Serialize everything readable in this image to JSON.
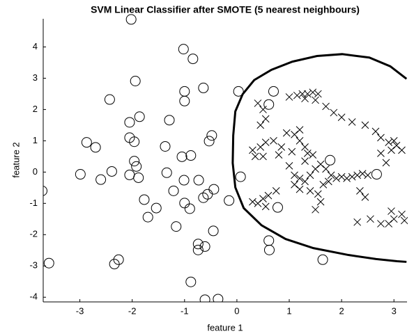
{
  "chart_data": {
    "type": "scatter",
    "title": "SVM Linear Classifier after SMOTE (5 nearest neighbours)",
    "x_label": "feature 1",
    "y_label": "feature 2",
    "xlim": [
      -3.7,
      3.25
    ],
    "ylim": [
      -4.15,
      4.9
    ],
    "xticks": [
      -3,
      -2,
      -1,
      0,
      1,
      2,
      3
    ],
    "yticks": [
      -4,
      -3,
      -2,
      -1,
      0,
      1,
      2,
      3,
      4
    ],
    "grid": false,
    "series": [
      {
        "marker": "o",
        "color": "#000000",
        "x": [
          -2.02,
          -1.02,
          -0.84,
          -1.94,
          -0.64,
          -1.0,
          -2.43,
          -1.0,
          0.03,
          0.7,
          0.61,
          -1.86,
          -2.05,
          -1.29,
          -0.48,
          -0.53,
          -2.87,
          -2.7,
          -2.05,
          -1.96,
          -1.37,
          -1.05,
          -0.88,
          -1.96,
          -1.92,
          -2.39,
          -2.99,
          -1.34,
          -2.05,
          -1.88,
          -2.6,
          -1.01,
          -0.73,
          0.07,
          -3.72,
          -1.21,
          -0.44,
          -0.56,
          -0.64,
          -1.77,
          -0.15,
          -1.0,
          -0.9,
          -1.54,
          0.78,
          -1.7,
          -1.16,
          -0.45,
          0.61,
          -0.74,
          -0.61,
          -0.74,
          0.62,
          -2.26,
          -2.34,
          -3.59,
          1.64,
          -0.88,
          -0.61,
          -0.36,
          1.78,
          2.67
        ],
        "y": [
          4.88,
          3.93,
          3.62,
          2.91,
          2.69,
          2.58,
          2.32,
          2.27,
          2.58,
          2.58,
          2.16,
          1.77,
          1.59,
          1.66,
          1.17,
          0.99,
          0.95,
          0.79,
          1.1,
          0.97,
          0.82,
          0.49,
          0.53,
          0.35,
          0.18,
          0.02,
          -0.07,
          -0.02,
          -0.09,
          -0.18,
          -0.24,
          -0.26,
          -0.26,
          -0.15,
          -0.6,
          -0.6,
          -0.55,
          -0.71,
          -0.82,
          -0.88,
          -0.91,
          -0.99,
          -1.17,
          -1.15,
          -1.13,
          -1.44,
          -1.74,
          -1.88,
          -2.19,
          -2.3,
          -2.38,
          -2.49,
          -2.49,
          -2.8,
          -2.94,
          -2.91,
          -2.8,
          -3.51,
          -4.08,
          -4.06,
          0.38,
          -0.07
        ]
      },
      {
        "marker": "x",
        "color": "#000000",
        "x": [
          1.0,
          1.15,
          1.25,
          1.35,
          1.45,
          1.55,
          1.3,
          1.5,
          1.7,
          1.85,
          2.0,
          2.2,
          2.45,
          2.65,
          2.75,
          2.9,
          3.05,
          3.15,
          2.95,
          2.75,
          2.85,
          3.0,
          0.4,
          0.5,
          0.55,
          0.45,
          0.3,
          0.45,
          0.55,
          0.7,
          0.85,
          0.95,
          1.1,
          1.2,
          1.2,
          1.3,
          1.35,
          0.5,
          0.35,
          0.8,
          1.05,
          1.45,
          1.0,
          1.1,
          1.1,
          1.2,
          1.3,
          1.4,
          1.5,
          1.6,
          1.7,
          1.8,
          1.9,
          2.0,
          2.1,
          2.2,
          2.3,
          2.4,
          2.5,
          1.4,
          1.55,
          1.6,
          1.5,
          1.65,
          1.75,
          2.35,
          2.45,
          1.2,
          1.3,
          0.3,
          0.4,
          0.5,
          0.6,
          0.55,
          0.75,
          2.3,
          2.55,
          2.75,
          2.9,
          3.0,
          3.2,
          2.95,
          3.15
        ],
        "y": [
          2.4,
          2.45,
          2.5,
          2.5,
          2.55,
          2.5,
          2.35,
          2.3,
          2.1,
          1.9,
          1.75,
          1.6,
          1.5,
          1.3,
          1.1,
          0.95,
          0.85,
          0.7,
          0.7,
          0.6,
          0.3,
          1.0,
          2.2,
          2.0,
          1.7,
          1.5,
          0.7,
          0.8,
          0.95,
          1.0,
          0.8,
          1.25,
          1.2,
          1.35,
          1.0,
          0.8,
          0.6,
          0.5,
          0.5,
          0.55,
          0.65,
          0.55,
          0.2,
          -0.1,
          -0.4,
          -0.55,
          -0.3,
          -0.1,
          0.1,
          0.25,
          0.1,
          -0.1,
          -0.2,
          -0.15,
          -0.2,
          -0.15,
          -0.1,
          -0.05,
          -0.1,
          -0.6,
          -0.7,
          -0.95,
          -1.2,
          -0.4,
          -0.3,
          -0.6,
          -0.8,
          -0.2,
          0.35,
          -0.95,
          -1.0,
          -0.85,
          -0.75,
          -1.1,
          -0.6,
          -1.6,
          -1.5,
          -1.65,
          -1.65,
          -1.5,
          -1.55,
          -1.25,
          -1.35
        ]
      },
      {
        "marker": "line",
        "color": "#000000",
        "x": [
          3.24,
          2.93,
          2.53,
          2.01,
          1.53,
          1.06,
          0.66,
          0.33,
          0.11,
          -0.03,
          -0.07,
          -0.08,
          -0.03,
          0.13,
          0.47,
          0.93,
          1.46,
          2.13,
          2.66,
          3.06,
          3.24
        ],
        "y": [
          2.98,
          3.38,
          3.66,
          3.77,
          3.71,
          3.53,
          3.27,
          2.94,
          2.49,
          1.94,
          1.17,
          0.29,
          -0.49,
          -1.15,
          -1.7,
          -2.14,
          -2.43,
          -2.65,
          -2.78,
          -2.85,
          -2.87
        ]
      }
    ]
  }
}
